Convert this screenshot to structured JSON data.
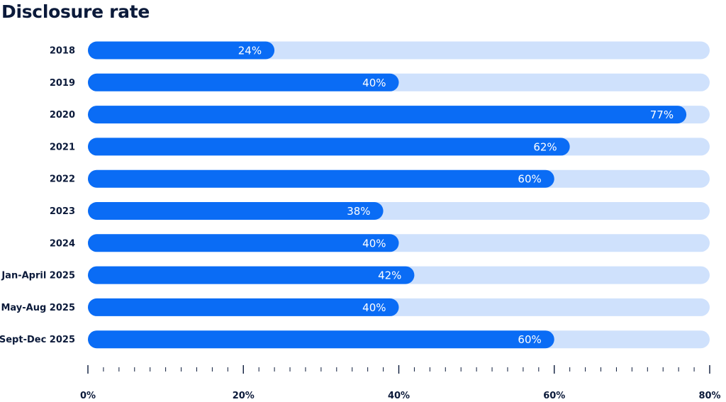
{
  "chart_data": {
    "type": "bar",
    "orientation": "horizontal",
    "title": "Disclosure rate",
    "categories": [
      "2018",
      "2019",
      "2020",
      "2021",
      "2022",
      "2023",
      "2024",
      "Jan-April 2025",
      "May-Aug 2025",
      "Sept-Dec 2025"
    ],
    "values": [
      24,
      40,
      77,
      62,
      60,
      38,
      40,
      42,
      40,
      60
    ],
    "value_labels": [
      "24%",
      "40%",
      "77%",
      "62%",
      "60%",
      "38%",
      "40%",
      "42%",
      "40%",
      "60%"
    ],
    "xlim": [
      0,
      80
    ],
    "x_ticks": [
      0,
      20,
      40,
      60,
      80
    ],
    "x_tick_labels": [
      "0%",
      "20%",
      "40%",
      "60%",
      "80%"
    ],
    "minor_tick_step": 2,
    "grid": false,
    "colors": {
      "bar": "#0a6cf5",
      "track": "#cfe1fc",
      "text": "#0b1a3a",
      "value_text": "#ffffff",
      "axis": "#0b1a3a"
    }
  }
}
